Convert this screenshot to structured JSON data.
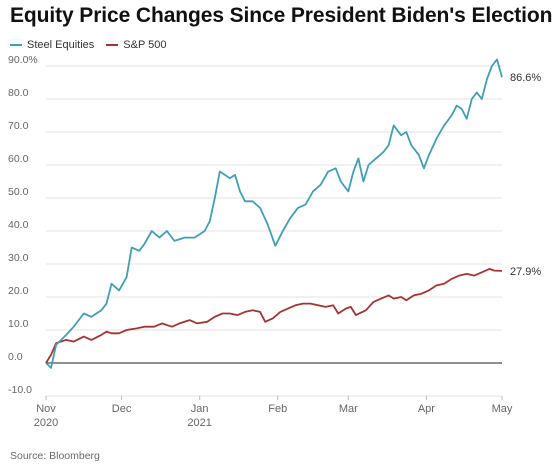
{
  "title": "Equity Price Changes Since President Biden's Election",
  "source": "Source: Bloomberg",
  "colors": {
    "steel": "#3f9fb6",
    "sp500": "#a83232",
    "grid": "#e3e3e3",
    "axis_text": "#666666"
  },
  "chart_data": {
    "type": "line",
    "title": "Equity Price Changes Since President Biden's Election",
    "ylim": [
      -10,
      90
    ],
    "y_ticks": [
      {
        "value": 90,
        "label": "90.0%"
      },
      {
        "value": 80,
        "label": "80.0"
      },
      {
        "value": 70,
        "label": "70.0"
      },
      {
        "value": 60,
        "label": "60.0"
      },
      {
        "value": 50,
        "label": "50.0"
      },
      {
        "value": 40,
        "label": "40.0"
      },
      {
        "value": 30,
        "label": "30.0"
      },
      {
        "value": 20,
        "label": "20.0"
      },
      {
        "value": 10,
        "label": "10.0"
      },
      {
        "value": 0,
        "label": "0.0"
      },
      {
        "value": -10,
        "label": "-10.0"
      }
    ],
    "x_ticks": [
      {
        "date": "2020-11-01",
        "label": "Nov",
        "sublabel": "2020"
      },
      {
        "date": "2020-12-01",
        "label": "Dec",
        "sublabel": ""
      },
      {
        "date": "2021-01-01",
        "label": "Jan",
        "sublabel": "2021"
      },
      {
        "date": "2021-02-01",
        "label": "Feb",
        "sublabel": ""
      },
      {
        "date": "2021-03-01",
        "label": "Mar",
        "sublabel": ""
      },
      {
        "date": "2021-04-01",
        "label": "Apr",
        "sublabel": ""
      },
      {
        "date": "2021-05-01",
        "label": "May",
        "sublabel": ""
      }
    ],
    "grid": true,
    "legend_position": "top-left",
    "series": [
      {
        "name": "Steel Equities",
        "color": "#3f9fb6",
        "end_label": "86.6%",
        "points": [
          [
            "2020-11-01",
            0.0
          ],
          [
            "2020-11-03",
            -1.5
          ],
          [
            "2020-11-05",
            5.5
          ],
          [
            "2020-11-09",
            8.5
          ],
          [
            "2020-11-12",
            11.0
          ],
          [
            "2020-11-16",
            15.0
          ],
          [
            "2020-11-19",
            14.0
          ],
          [
            "2020-11-23",
            16.0
          ],
          [
            "2020-11-25",
            18.0
          ],
          [
            "2020-11-27",
            24.0
          ],
          [
            "2020-11-30",
            22.0
          ],
          [
            "2020-12-03",
            26.0
          ],
          [
            "2020-12-05",
            35.0
          ],
          [
            "2020-12-08",
            34.0
          ],
          [
            "2020-12-10",
            36.0
          ],
          [
            "2020-12-13",
            40.0
          ],
          [
            "2020-12-16",
            38.0
          ],
          [
            "2020-12-19",
            40.0
          ],
          [
            "2020-12-22",
            37.0
          ],
          [
            "2020-12-26",
            38.0
          ],
          [
            "2020-12-30",
            38.0
          ],
          [
            "2021-01-03",
            40.0
          ],
          [
            "2021-01-05",
            43.0
          ],
          [
            "2021-01-07",
            50.0
          ],
          [
            "2021-01-09",
            58.0
          ],
          [
            "2021-01-11",
            57.0
          ],
          [
            "2021-01-13",
            56.0
          ],
          [
            "2021-01-15",
            57.0
          ],
          [
            "2021-01-17",
            52.0
          ],
          [
            "2021-01-19",
            49.0
          ],
          [
            "2021-01-22",
            49.0
          ],
          [
            "2021-01-25",
            47.0
          ],
          [
            "2021-01-28",
            42.0
          ],
          [
            "2021-01-31",
            35.5
          ],
          [
            "2021-02-03",
            40.0
          ],
          [
            "2021-02-06",
            44.0
          ],
          [
            "2021-02-09",
            47.0
          ],
          [
            "2021-02-12",
            48.0
          ],
          [
            "2021-02-15",
            52.0
          ],
          [
            "2021-02-18",
            54.0
          ],
          [
            "2021-02-21",
            58.0
          ],
          [
            "2021-02-24",
            59.0
          ],
          [
            "2021-02-26",
            55.0
          ],
          [
            "2021-03-01",
            52.0
          ],
          [
            "2021-03-03",
            58.0
          ],
          [
            "2021-03-05",
            62.0
          ],
          [
            "2021-03-07",
            55.0
          ],
          [
            "2021-03-09",
            60.0
          ],
          [
            "2021-03-12",
            62.0
          ],
          [
            "2021-03-15",
            64.0
          ],
          [
            "2021-03-17",
            66.0
          ],
          [
            "2021-03-19",
            72.0
          ],
          [
            "2021-03-22",
            69.0
          ],
          [
            "2021-03-24",
            70.0
          ],
          [
            "2021-03-26",
            66.0
          ],
          [
            "2021-03-29",
            63.0
          ],
          [
            "2021-03-31",
            59.0
          ],
          [
            "2021-04-02",
            63.0
          ],
          [
            "2021-04-05",
            68.0
          ],
          [
            "2021-04-08",
            72.0
          ],
          [
            "2021-04-11",
            75.0
          ],
          [
            "2021-04-13",
            78.0
          ],
          [
            "2021-04-15",
            77.0
          ],
          [
            "2021-04-17",
            74.0
          ],
          [
            "2021-04-19",
            80.0
          ],
          [
            "2021-04-21",
            82.0
          ],
          [
            "2021-04-23",
            80.0
          ],
          [
            "2021-04-25",
            86.0
          ],
          [
            "2021-04-27",
            90.0
          ],
          [
            "2021-04-29",
            92.0
          ],
          [
            "2021-05-01",
            86.6
          ]
        ]
      },
      {
        "name": "S&P 500",
        "color": "#a83232",
        "end_label": "27.9%",
        "points": [
          [
            "2020-11-01",
            0.0
          ],
          [
            "2020-11-03",
            2.5
          ],
          [
            "2020-11-05",
            6.0
          ],
          [
            "2020-11-09",
            7.0
          ],
          [
            "2020-11-12",
            6.5
          ],
          [
            "2020-11-16",
            8.0
          ],
          [
            "2020-11-19",
            7.0
          ],
          [
            "2020-11-23",
            8.5
          ],
          [
            "2020-11-25",
            9.5
          ],
          [
            "2020-11-27",
            9.0
          ],
          [
            "2020-11-30",
            9.0
          ],
          [
            "2020-12-03",
            10.0
          ],
          [
            "2020-12-07",
            10.5
          ],
          [
            "2020-12-10",
            11.0
          ],
          [
            "2020-12-14",
            11.0
          ],
          [
            "2020-12-17",
            12.0
          ],
          [
            "2020-12-21",
            11.0
          ],
          [
            "2020-12-24",
            12.0
          ],
          [
            "2020-12-28",
            13.0
          ],
          [
            "2020-12-31",
            12.0
          ],
          [
            "2021-01-04",
            12.5
          ],
          [
            "2021-01-07",
            14.0
          ],
          [
            "2021-01-10",
            15.0
          ],
          [
            "2021-01-13",
            15.0
          ],
          [
            "2021-01-16",
            14.5
          ],
          [
            "2021-01-19",
            15.5
          ],
          [
            "2021-01-22",
            16.0
          ],
          [
            "2021-01-25",
            15.5
          ],
          [
            "2021-01-27",
            12.5
          ],
          [
            "2021-01-30",
            13.5
          ],
          [
            "2021-02-02",
            15.5
          ],
          [
            "2021-02-05",
            16.5
          ],
          [
            "2021-02-08",
            17.5
          ],
          [
            "2021-02-11",
            18.0
          ],
          [
            "2021-02-14",
            18.0
          ],
          [
            "2021-02-17",
            17.5
          ],
          [
            "2021-02-20",
            17.0
          ],
          [
            "2021-02-23",
            17.5
          ],
          [
            "2021-02-25",
            15.0
          ],
          [
            "2021-02-28",
            16.5
          ],
          [
            "2021-03-02",
            17.0
          ],
          [
            "2021-03-04",
            14.5
          ],
          [
            "2021-03-08",
            16.0
          ],
          [
            "2021-03-11",
            18.5
          ],
          [
            "2021-03-14",
            19.5
          ],
          [
            "2021-03-17",
            20.5
          ],
          [
            "2021-03-19",
            19.5
          ],
          [
            "2021-03-22",
            20.0
          ],
          [
            "2021-03-24",
            19.0
          ],
          [
            "2021-03-27",
            20.5
          ],
          [
            "2021-03-30",
            21.0
          ],
          [
            "2021-04-02",
            22.0
          ],
          [
            "2021-04-05",
            23.5
          ],
          [
            "2021-04-08",
            24.0
          ],
          [
            "2021-04-11",
            25.5
          ],
          [
            "2021-04-14",
            26.5
          ],
          [
            "2021-04-17",
            27.0
          ],
          [
            "2021-04-20",
            26.5
          ],
          [
            "2021-04-23",
            27.5
          ],
          [
            "2021-04-26",
            28.5
          ],
          [
            "2021-04-28",
            28.0
          ],
          [
            "2021-05-01",
            27.9
          ]
        ]
      }
    ]
  }
}
